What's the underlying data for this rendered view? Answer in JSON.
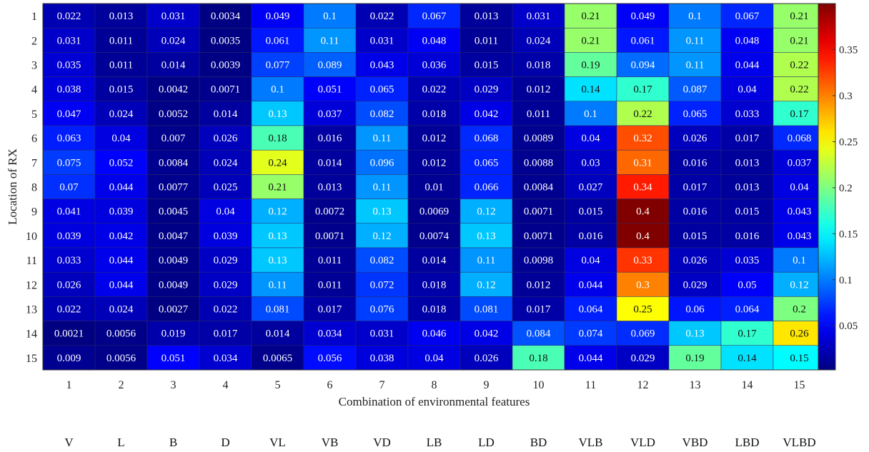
{
  "chart_data": {
    "type": "heatmap",
    "xlabel": "Combination of environmental features",
    "ylabel": "Location of RX",
    "x_categories": [
      "1",
      "2",
      "3",
      "4",
      "5",
      "6",
      "7",
      "8",
      "9",
      "10",
      "11",
      "12",
      "13",
      "14",
      "15"
    ],
    "y_categories": [
      "1",
      "2",
      "3",
      "4",
      "5",
      "6",
      "7",
      "8",
      "9",
      "10",
      "11",
      "12",
      "13",
      "14",
      "15"
    ],
    "feature_labels": [
      "V",
      "L",
      "B",
      "D",
      "VL",
      "VB",
      "VD",
      "LB",
      "LD",
      "BD",
      "VLB",
      "VLD",
      "VBD",
      "LBD",
      "VLBD"
    ],
    "values": [
      [
        0.022,
        0.013,
        0.031,
        0.0034,
        0.049,
        0.1,
        0.022,
        0.067,
        0.013,
        0.031,
        0.21,
        0.049,
        0.1,
        0.067,
        0.21
      ],
      [
        0.031,
        0.011,
        0.024,
        0.0035,
        0.061,
        0.11,
        0.031,
        0.048,
        0.011,
        0.024,
        0.21,
        0.061,
        0.11,
        0.048,
        0.21
      ],
      [
        0.035,
        0.011,
        0.014,
        0.0039,
        0.077,
        0.089,
        0.043,
        0.036,
        0.015,
        0.018,
        0.19,
        0.094,
        0.11,
        0.044,
        0.22
      ],
      [
        0.038,
        0.015,
        0.0042,
        0.0071,
        0.1,
        0.051,
        0.065,
        0.022,
        0.029,
        0.012,
        0.14,
        0.17,
        0.087,
        0.04,
        0.22
      ],
      [
        0.047,
        0.024,
        0.0052,
        0.014,
        0.13,
        0.037,
        0.082,
        0.018,
        0.042,
        0.011,
        0.1,
        0.22,
        0.065,
        0.033,
        0.17
      ],
      [
        0.063,
        0.04,
        0.007,
        0.026,
        0.18,
        0.016,
        0.11,
        0.012,
        0.068,
        0.0089,
        0.04,
        0.32,
        0.026,
        0.017,
        0.068
      ],
      [
        0.075,
        0.052,
        0.0084,
        0.024,
        0.24,
        0.014,
        0.096,
        0.012,
        0.065,
        0.0088,
        0.03,
        0.31,
        0.016,
        0.013,
        0.037
      ],
      [
        0.07,
        0.044,
        0.0077,
        0.025,
        0.21,
        0.013,
        0.11,
        0.01,
        0.066,
        0.0084,
        0.027,
        0.34,
        0.017,
        0.013,
        0.04
      ],
      [
        0.041,
        0.039,
        0.0045,
        0.04,
        0.12,
        0.0072,
        0.13,
        0.0069,
        0.12,
        0.0071,
        0.015,
        0.4,
        0.016,
        0.015,
        0.043
      ],
      [
        0.039,
        0.042,
        0.0047,
        0.039,
        0.13,
        0.0071,
        0.12,
        0.0074,
        0.13,
        0.0071,
        0.016,
        0.4,
        0.015,
        0.016,
        0.043
      ],
      [
        0.033,
        0.044,
        0.0049,
        0.029,
        0.13,
        0.011,
        0.082,
        0.014,
        0.11,
        0.0098,
        0.04,
        0.33,
        0.026,
        0.035,
        0.1
      ],
      [
        0.026,
        0.044,
        0.0049,
        0.029,
        0.11,
        0.011,
        0.072,
        0.018,
        0.12,
        0.012,
        0.044,
        0.3,
        0.029,
        0.05,
        0.12
      ],
      [
        0.022,
        0.024,
        0.0027,
        0.022,
        0.081,
        0.017,
        0.076,
        0.018,
        0.081,
        0.017,
        0.064,
        0.25,
        0.06,
        0.064,
        0.2
      ],
      [
        0.0021,
        0.0056,
        0.019,
        0.017,
        0.014,
        0.034,
        0.031,
        0.046,
        0.042,
        0.084,
        0.074,
        0.069,
        0.13,
        0.17,
        0.26
      ],
      [
        0.009,
        0.0056,
        0.051,
        0.034,
        0.0065,
        0.056,
        0.038,
        0.04,
        0.026,
        0.18,
        0.044,
        0.029,
        0.19,
        0.14,
        0.15
      ]
    ],
    "colormap": "jet",
    "colorbar": {
      "range": [
        0.0021,
        0.4
      ],
      "ticks": [
        0.05,
        0.1,
        0.15,
        0.2,
        0.25,
        0.3,
        0.35
      ],
      "tick_labels": [
        "0.05",
        "0.1",
        "0.15",
        "0.2",
        "0.25",
        "0.3",
        "0.35"
      ]
    }
  }
}
